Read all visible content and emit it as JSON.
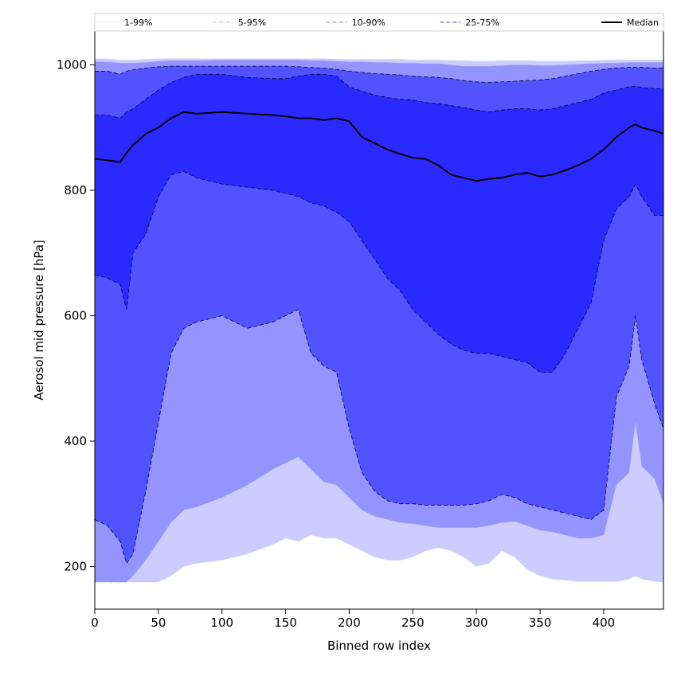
{
  "chart_data": {
    "type": "area",
    "title": "",
    "xlabel": "Binned row index",
    "ylabel": "Aerosol mid pressure [hPa]",
    "xlim": [
      0,
      447
    ],
    "ylim": [
      132,
      1054
    ],
    "xticks": [
      0,
      50,
      100,
      150,
      200,
      250,
      300,
      350,
      400
    ],
    "yticks": [
      200,
      400,
      600,
      800,
      1000
    ],
    "grid": false,
    "legend_position": "top, horizontal",
    "legend": [
      {
        "label": "1-99%",
        "style": "dotted",
        "color": "#d6d6f0"
      },
      {
        "label": "5-95%",
        "style": "dashdot",
        "color": "#b0b0e6"
      },
      {
        "label": "10-90%",
        "style": "dashed",
        "color": "#8080ee"
      },
      {
        "label": "25-75%",
        "style": "dashed",
        "color": "#5050e6"
      },
      {
        "label": "Median",
        "style": "solid",
        "color": "#000000"
      }
    ],
    "band_colors": [
      "#ccccff",
      "#9494ff",
      "#5252ff",
      "#2a2aff"
    ],
    "x": [
      0,
      10,
      20,
      25,
      30,
      40,
      50,
      60,
      70,
      80,
      100,
      120,
      140,
      150,
      160,
      170,
      180,
      190,
      200,
      210,
      220,
      230,
      240,
      250,
      260,
      270,
      280,
      290,
      300,
      310,
      320,
      330,
      340,
      350,
      360,
      370,
      380,
      390,
      400,
      410,
      420,
      425,
      430,
      440,
      447
    ],
    "series": [
      {
        "name": "1-99%",
        "lower": [
          175,
          175,
          175,
          175,
          175,
          175,
          175,
          185,
          200,
          205,
          210,
          220,
          235,
          245,
          240,
          250,
          245,
          245,
          235,
          225,
          215,
          210,
          210,
          215,
          225,
          230,
          225,
          215,
          200,
          205,
          225,
          215,
          195,
          185,
          180,
          178,
          176,
          176,
          176,
          176,
          180,
          185,
          180,
          176,
          175
        ],
        "upper": [
          1010,
          1010,
          1008,
          1008,
          1008,
          1009,
          1010,
          1010,
          1010,
          1010,
          1010,
          1010,
          1010,
          1010,
          1010,
          1010,
          1010,
          1009,
          1009,
          1009,
          1009,
          1009,
          1009,
          1008,
          1008,
          1008,
          1007,
          1007,
          1006,
          1006,
          1007,
          1007,
          1007,
          1006,
          1006,
          1006,
          1007,
          1007,
          1008,
          1008,
          1008,
          1008,
          1008,
          1008,
          1008
        ]
      },
      {
        "name": "5-95%",
        "lower": [
          175,
          175,
          175,
          175,
          185,
          210,
          240,
          270,
          290,
          295,
          310,
          330,
          355,
          365,
          375,
          355,
          335,
          330,
          310,
          290,
          280,
          275,
          270,
          268,
          265,
          262,
          262,
          262,
          262,
          265,
          270,
          272,
          265,
          258,
          255,
          250,
          245,
          245,
          250,
          330,
          350,
          430,
          360,
          340,
          300
        ],
        "upper": [
          1005,
          1005,
          1003,
          1003,
          1003,
          1004,
          1006,
          1007,
          1007,
          1007,
          1008,
          1008,
          1008,
          1008,
          1008,
          1007,
          1007,
          1006,
          1005,
          1005,
          1004,
          1004,
          1003,
          1003,
          1002,
          1002,
          1000,
          998,
          998,
          998,
          999,
          1000,
          1000,
          999,
          999,
          1000,
          1001,
          1002,
          1003,
          1003,
          1004,
          1004,
          1004,
          1004,
          1004
        ]
      },
      {
        "name": "10-90%",
        "lower": [
          275,
          265,
          240,
          205,
          220,
          320,
          430,
          540,
          580,
          590,
          600,
          580,
          590,
          600,
          610,
          540,
          520,
          510,
          420,
          350,
          320,
          305,
          300,
          300,
          298,
          298,
          298,
          298,
          300,
          305,
          315,
          310,
          300,
          295,
          290,
          285,
          280,
          275,
          290,
          470,
          520,
          600,
          530,
          460,
          420
        ],
        "upper": [
          990,
          990,
          985,
          990,
          992,
          995,
          997,
          998,
          998,
          998,
          998,
          998,
          998,
          998,
          997,
          996,
          995,
          993,
          990,
          988,
          986,
          985,
          984,
          982,
          981,
          980,
          978,
          975,
          973,
          972,
          973,
          974,
          975,
          976,
          978,
          982,
          986,
          990,
          993,
          995,
          996,
          996,
          996,
          995,
          995
        ]
      },
      {
        "name": "25-75%",
        "lower": [
          665,
          660,
          650,
          610,
          700,
          730,
          790,
          825,
          830,
          820,
          810,
          805,
          800,
          795,
          790,
          780,
          775,
          765,
          750,
          720,
          690,
          660,
          640,
          610,
          590,
          570,
          555,
          545,
          540,
          540,
          535,
          530,
          525,
          510,
          510,
          540,
          580,
          620,
          720,
          770,
          790,
          810,
          790,
          760,
          760
        ],
        "upper": [
          920,
          920,
          915,
          925,
          930,
          945,
          960,
          972,
          980,
          985,
          985,
          980,
          978,
          978,
          982,
          985,
          985,
          982,
          965,
          958,
          952,
          948,
          945,
          944,
          940,
          938,
          935,
          932,
          928,
          925,
          928,
          930,
          930,
          928,
          930,
          935,
          940,
          945,
          955,
          960,
          965,
          966,
          964,
          962,
          962
        ]
      },
      {
        "name": "Median",
        "values": [
          850,
          848,
          845,
          860,
          872,
          890,
          900,
          915,
          925,
          922,
          925,
          922,
          920,
          918,
          915,
          915,
          912,
          915,
          910,
          885,
          875,
          865,
          858,
          852,
          850,
          840,
          825,
          820,
          815,
          818,
          820,
          825,
          828,
          822,
          825,
          832,
          840,
          850,
          865,
          885,
          900,
          905,
          900,
          895,
          890
        ]
      }
    ]
  }
}
